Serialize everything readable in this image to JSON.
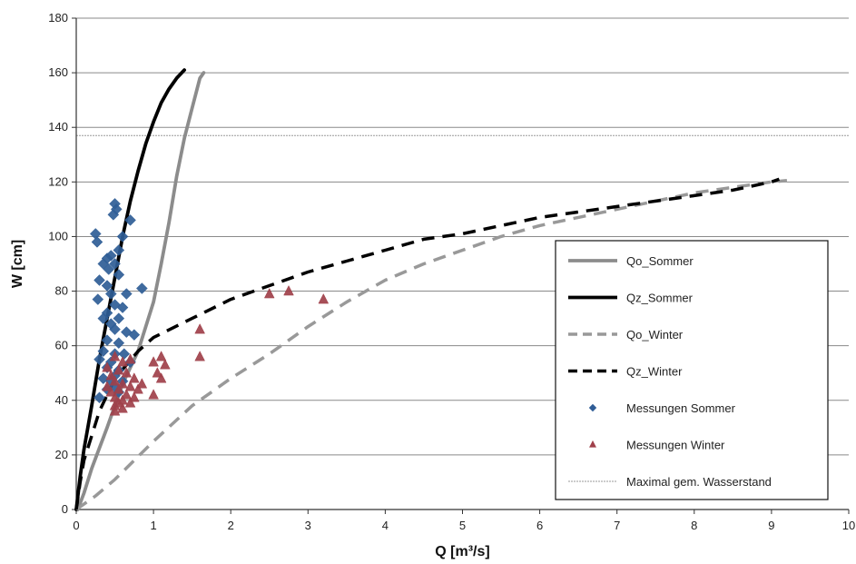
{
  "chart_data": {
    "type": "scatter",
    "title": "",
    "xlabel": "Q [m³/s]",
    "ylabel": "W [cm]",
    "xlim": [
      0,
      10
    ],
    "ylim": [
      0,
      180
    ],
    "xticks": [
      "0",
      "1",
      "2",
      "3",
      "4",
      "5",
      "6",
      "7",
      "8",
      "9",
      "10"
    ],
    "yticks": [
      "0",
      "20",
      "40",
      "60",
      "80",
      "100",
      "120",
      "140",
      "160",
      "180"
    ],
    "grid": "horizontal",
    "legend_position": "right",
    "series": [
      {
        "name": "Qo_Sommer",
        "kind": "line",
        "style": "solid",
        "color": "#8c8c8c",
        "points": [
          [
            0.02,
            0
          ],
          [
            0.1,
            6
          ],
          [
            0.2,
            15
          ],
          [
            0.4,
            30
          ],
          [
            0.6,
            46
          ],
          [
            0.8,
            58
          ],
          [
            1.0,
            76
          ],
          [
            1.1,
            90
          ],
          [
            1.2,
            105
          ],
          [
            1.3,
            122
          ],
          [
            1.4,
            136
          ],
          [
            1.5,
            147
          ],
          [
            1.6,
            158
          ],
          [
            1.65,
            160
          ]
        ]
      },
      {
        "name": "Qz_Sommer",
        "kind": "line",
        "style": "solid",
        "color": "#000000",
        "points": [
          [
            0.0,
            0
          ],
          [
            0.05,
            12
          ],
          [
            0.1,
            22
          ],
          [
            0.2,
            38
          ],
          [
            0.3,
            55
          ],
          [
            0.4,
            70
          ],
          [
            0.5,
            85
          ],
          [
            0.6,
            100
          ],
          [
            0.7,
            113
          ],
          [
            0.8,
            124
          ],
          [
            0.9,
            134
          ],
          [
            1.0,
            142
          ],
          [
            1.1,
            149
          ],
          [
            1.2,
            154
          ],
          [
            1.3,
            158
          ],
          [
            1.4,
            161
          ]
        ]
      },
      {
        "name": "Qo_Winter",
        "kind": "line",
        "style": "dashed",
        "color": "#999999",
        "points": [
          [
            0.0,
            0
          ],
          [
            0.25,
            5
          ],
          [
            0.5,
            11
          ],
          [
            1.0,
            25
          ],
          [
            1.5,
            38
          ],
          [
            2.0,
            48
          ],
          [
            2.5,
            57
          ],
          [
            3.0,
            67
          ],
          [
            3.5,
            76
          ],
          [
            4.0,
            84
          ],
          [
            4.5,
            90
          ],
          [
            5.0,
            95
          ],
          [
            5.5,
            100
          ],
          [
            6.0,
            104
          ],
          [
            6.5,
            107
          ],
          [
            7.0,
            110
          ],
          [
            7.5,
            113
          ],
          [
            8.0,
            116
          ],
          [
            8.5,
            118
          ],
          [
            9.0,
            120
          ],
          [
            9.2,
            120.5
          ]
        ]
      },
      {
        "name": "Qz_Winter",
        "kind": "line",
        "style": "dashed",
        "color": "#000000",
        "points": [
          [
            0.0,
            0
          ],
          [
            0.05,
            10
          ],
          [
            0.1,
            18
          ],
          [
            0.2,
            27
          ],
          [
            0.3,
            36
          ],
          [
            0.5,
            48
          ],
          [
            0.8,
            58
          ],
          [
            1.0,
            63
          ],
          [
            1.5,
            70
          ],
          [
            2.0,
            77
          ],
          [
            2.5,
            82
          ],
          [
            3.0,
            87
          ],
          [
            3.5,
            91
          ],
          [
            4.0,
            95
          ],
          [
            4.5,
            99
          ],
          [
            5.0,
            101
          ],
          [
            5.5,
            104
          ],
          [
            6.0,
            107
          ],
          [
            6.5,
            109
          ],
          [
            7.0,
            111
          ],
          [
            7.5,
            113
          ],
          [
            8.0,
            115
          ],
          [
            8.5,
            117
          ],
          [
            9.0,
            120
          ],
          [
            9.1,
            121
          ]
        ]
      },
      {
        "name": "Messungen Sommer",
        "kind": "scatter",
        "marker": "diamond",
        "color": "#2f5d96",
        "points": [
          [
            0.25,
            101
          ],
          [
            0.27,
            98
          ],
          [
            0.5,
            112
          ],
          [
            0.52,
            110
          ],
          [
            0.48,
            108
          ],
          [
            0.7,
            106
          ],
          [
            0.6,
            100
          ],
          [
            0.55,
            95
          ],
          [
            0.45,
            93
          ],
          [
            0.4,
            92
          ],
          [
            0.35,
            90
          ],
          [
            0.5,
            90
          ],
          [
            0.42,
            88
          ],
          [
            0.55,
            86
          ],
          [
            0.3,
            84
          ],
          [
            0.4,
            82
          ],
          [
            0.85,
            81
          ],
          [
            0.45,
            79
          ],
          [
            0.65,
            79
          ],
          [
            0.28,
            77
          ],
          [
            0.5,
            75
          ],
          [
            0.6,
            74
          ],
          [
            0.4,
            72
          ],
          [
            0.35,
            70
          ],
          [
            0.55,
            70
          ],
          [
            0.45,
            68
          ],
          [
            0.5,
            66
          ],
          [
            0.65,
            65
          ],
          [
            0.75,
            64
          ],
          [
            0.4,
            62
          ],
          [
            0.55,
            61
          ],
          [
            0.35,
            58
          ],
          [
            0.5,
            57
          ],
          [
            0.62,
            57
          ],
          [
            0.3,
            55
          ],
          [
            0.45,
            54
          ],
          [
            0.7,
            54
          ],
          [
            0.4,
            52
          ],
          [
            0.55,
            51
          ],
          [
            0.5,
            49
          ],
          [
            0.35,
            48
          ],
          [
            0.45,
            47
          ],
          [
            0.6,
            47
          ],
          [
            0.5,
            45
          ],
          [
            0.4,
            44
          ],
          [
            0.55,
            43
          ],
          [
            0.3,
            41
          ]
        ]
      },
      {
        "name": "Messungen Winter",
        "kind": "scatter",
        "marker": "triangle",
        "color": "#a0404a",
        "points": [
          [
            0.5,
            56
          ],
          [
            0.6,
            54
          ],
          [
            0.7,
            55
          ],
          [
            0.4,
            52
          ],
          [
            0.55,
            51
          ],
          [
            0.65,
            50
          ],
          [
            0.45,
            49
          ],
          [
            0.75,
            48
          ],
          [
            0.5,
            47
          ],
          [
            0.6,
            46
          ],
          [
            0.4,
            45
          ],
          [
            0.7,
            45
          ],
          [
            0.55,
            44
          ],
          [
            0.8,
            44
          ],
          [
            0.45,
            43
          ],
          [
            0.65,
            42
          ],
          [
            0.5,
            41
          ],
          [
            0.75,
            41
          ],
          [
            0.6,
            40
          ],
          [
            0.55,
            39
          ],
          [
            0.7,
            39
          ],
          [
            0.5,
            38
          ],
          [
            0.6,
            37
          ],
          [
            0.5,
            36
          ],
          [
            0.85,
            46
          ],
          [
            1.0,
            54
          ],
          [
            1.05,
            50
          ],
          [
            1.1,
            56
          ],
          [
            1.1,
            48
          ],
          [
            1.0,
            42
          ],
          [
            1.15,
            53
          ],
          [
            1.6,
            66
          ],
          [
            1.6,
            56
          ],
          [
            2.5,
            79
          ],
          [
            2.75,
            80
          ],
          [
            3.2,
            77
          ]
        ]
      },
      {
        "name": "Maximal gem. Wasserstand",
        "kind": "hline",
        "style": "dotted",
        "color": "#9a9a9a",
        "y": 137
      }
    ]
  }
}
